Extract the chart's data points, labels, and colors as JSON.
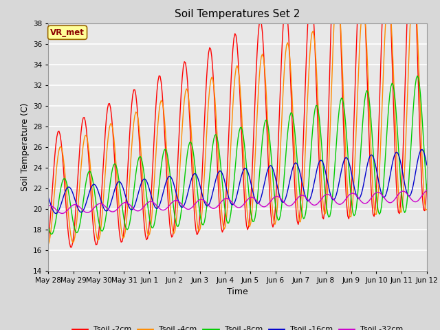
{
  "title": "Soil Temperatures Set 2",
  "xlabel": "Time",
  "ylabel": "Soil Temperature (C)",
  "ylim": [
    14,
    38
  ],
  "yticks": [
    14,
    16,
    18,
    20,
    22,
    24,
    26,
    28,
    30,
    32,
    34,
    36,
    38
  ],
  "fig_bg_color": "#d8d8d8",
  "ax_bg_color": "#e8e8e8",
  "annotation_text": "VR_met",
  "annotation_bg": "#ffff99",
  "annotation_fg": "#8b0000",
  "series_colors": {
    "2cm": "#ff0000",
    "4cm": "#ff8c00",
    "8cm": "#00cc00",
    "16cm": "#0000cc",
    "32cm": "#cc00cc"
  },
  "legend_labels": [
    "Tsoil -2cm",
    "Tsoil -4cm",
    "Tsoil -8cm",
    "Tsoil -16cm",
    "Tsoil -32cm"
  ],
  "n_days": 15,
  "n_per_day": 24
}
